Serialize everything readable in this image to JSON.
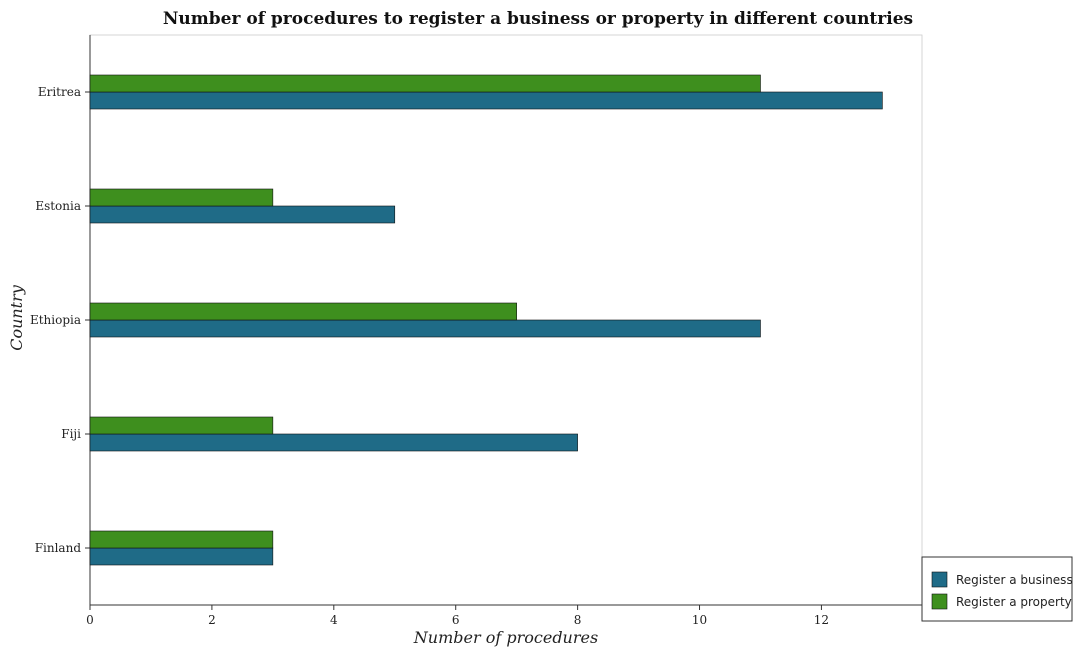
{
  "chart_data": {
    "type": "bar",
    "orientation": "horizontal",
    "title": "Number of procedures to register a business or property in different countries",
    "xlabel": "Number of procedures",
    "ylabel": "Country",
    "categories": [
      "Eritrea",
      "Estonia",
      "Ethiopia",
      "Fiji",
      "Finland"
    ],
    "series": [
      {
        "name": "Register a business",
        "values": [
          13,
          5,
          11,
          8,
          3
        ],
        "color": "#1f6b87"
      },
      {
        "name": "Register a property",
        "values": [
          11,
          3,
          7,
          3,
          3
        ],
        "color": "#3e8f1e"
      }
    ],
    "xlim": [
      0,
      13.65
    ],
    "xticks": [
      0,
      2,
      4,
      6,
      8,
      10,
      12
    ],
    "grid": false,
    "legend_position": "bottom-right"
  }
}
